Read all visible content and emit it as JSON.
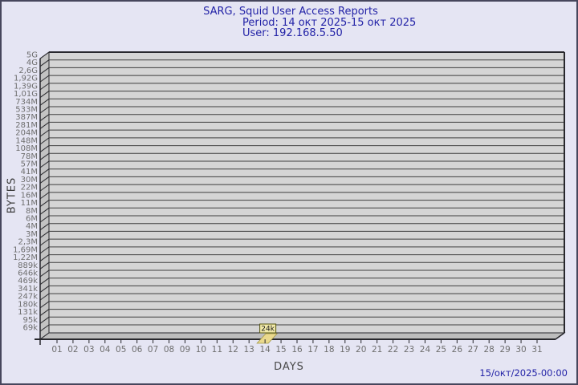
{
  "header": {
    "line1": "SARG, Squid User Access Reports",
    "line2": "Period: 14 окт 2025-15 окт 2025",
    "line3": "User: 192.168.5.50"
  },
  "footer": {
    "timestamp": "15/окт/2025-00:00"
  },
  "chart_data": {
    "type": "bar",
    "title": "SARG, Squid User Access Reports",
    "subtitle_period": "Period: 14 окт 2025-15 окт 2025",
    "subtitle_user": "User: 192.168.5.50",
    "xlabel": "DAYS",
    "ylabel": "BYTES",
    "x_categories": [
      "01",
      "02",
      "03",
      "04",
      "05",
      "06",
      "07",
      "08",
      "09",
      "10",
      "11",
      "12",
      "13",
      "14",
      "15",
      "16",
      "17",
      "18",
      "19",
      "20",
      "21",
      "22",
      "23",
      "24",
      "25",
      "26",
      "27",
      "28",
      "29",
      "30",
      "31"
    ],
    "y_axis": {
      "scale": "log",
      "tick_labels": [
        "5G",
        "4G",
        "2,6G",
        "1,92G",
        "1,39G",
        "1,01G",
        "734M",
        "533M",
        "387M",
        "281M",
        "204M",
        "148M",
        "108M",
        "78M",
        "57M",
        "41M",
        "30M",
        "22M",
        "16M",
        "11M",
        "8M",
        "6M",
        "4M",
        "3M",
        "2,3M",
        "1,69M",
        "1,22M",
        "889k",
        "646k",
        "469k",
        "341k",
        "247k",
        "180k",
        "131k",
        "95k",
        "69k"
      ]
    },
    "grid": true,
    "bars": [
      {
        "x": "14",
        "value": "24k"
      }
    ],
    "colors": {
      "background": "#e5e5f3",
      "panel": "#d5d5d5",
      "wall": "#c3c3c3",
      "floor": "#bdbdbd",
      "grid_line": "#3e3e3e",
      "frame": "#28282d",
      "axis_text": "#6e6e6e",
      "title_text": "#2323a7",
      "bar_fill": "#ead98d",
      "bar_edge": "#a39a45",
      "value_box_fill": "#f2eaaa",
      "value_box_border": "#55550f",
      "value_text": "#1a1a1a"
    }
  }
}
